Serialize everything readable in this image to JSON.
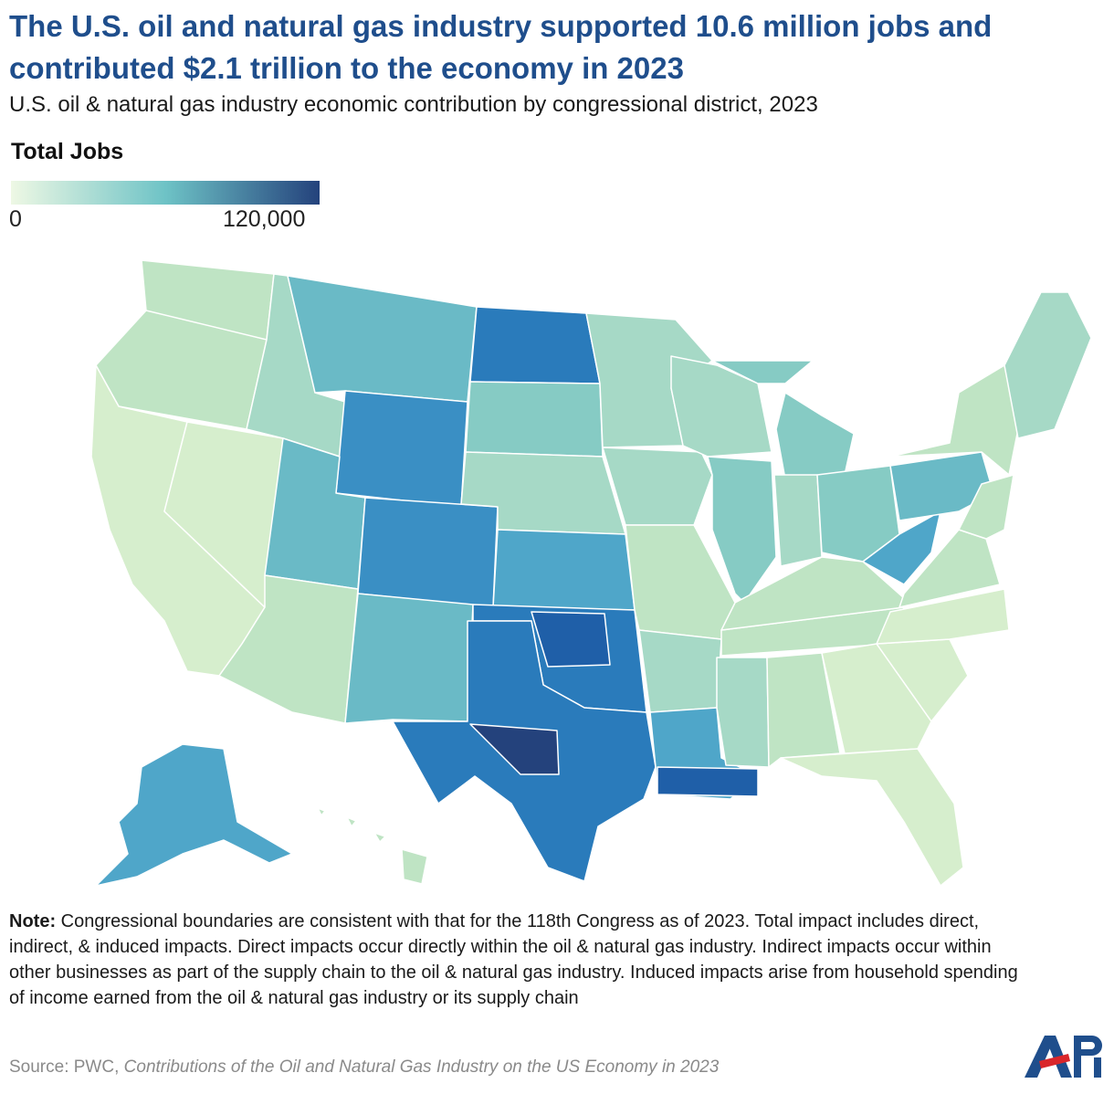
{
  "title": "The U.S. oil and natural gas industry supported 10.6 million jobs and contributed $2.1 trillion to the economy in 2023",
  "subtitle": "U.S. oil & natural gas industry economic contribution by congressional district, 2023",
  "legend": {
    "title": "Total Jobs",
    "min_label": "0",
    "max_label": "120,000",
    "color_min": "#eef8e4",
    "color_mid": "#6ec3c6",
    "color_max": "#24427c"
  },
  "note": {
    "label": "Note:",
    "text": "Congressional boundaries are consistent with that for the 118th Congress as of 2023. Total impact includes direct, indirect, & induced impacts. Direct impacts occur directly within the oil & natural gas industry. Indirect impacts occur within other businesses as part of the supply chain to the oil & natural gas industry. Induced impacts arise from household spending of income earned from the oil & natural gas industry or its supply chain"
  },
  "source": {
    "prefix": "Source: PWC, ",
    "title": "Contributions of the Oil and Natural Gas Industry on the US Economy in 2023"
  },
  "logo": {
    "text": "API"
  },
  "map_colors": {
    "lightest": "#d6eecd",
    "light": "#bfe4c4",
    "pale_teal": "#a6d9c6",
    "teal": "#86cbc4",
    "mid_teal": "#6abac6",
    "blue_teal": "#4fa6c9",
    "medium_blue": "#3a8fc4",
    "blue": "#2a7bbb",
    "dark_blue": "#1f5fa8",
    "darkest": "#24427c"
  }
}
